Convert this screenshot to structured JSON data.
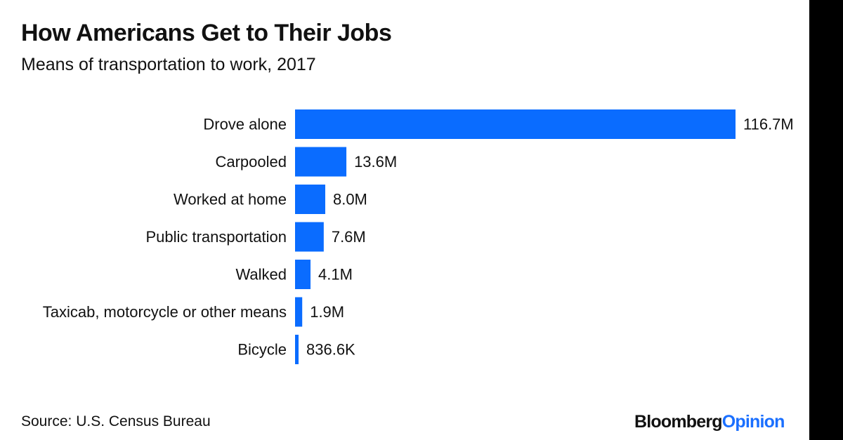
{
  "title": "How Americans Get to Their Jobs",
  "subtitle": "Means of transportation to work, 2017",
  "source": "Source: U.S. Census Bureau",
  "logo": {
    "brand": "Bloomberg",
    "product": "Opinion"
  },
  "colors": {
    "bar": "#0a6cff",
    "logo_accent": "#1a6fff",
    "band": "#000000"
  },
  "chart_data": {
    "type": "bar",
    "orientation": "horizontal",
    "categories": [
      "Drove alone",
      "Carpooled",
      "Worked at home",
      "Public transportation",
      "Walked",
      "Taxicab, motorcycle or other means",
      "Bicycle"
    ],
    "values": [
      116700000,
      13600000,
      8000000,
      7600000,
      4100000,
      1900000,
      836600
    ],
    "value_labels": [
      "116.7M",
      "13.6M",
      "8.0M",
      "7.6M",
      "4.1M",
      "1.9M",
      "836.6K"
    ],
    "xlim": [
      0,
      116700000
    ],
    "grid": false,
    "legend": "none"
  }
}
